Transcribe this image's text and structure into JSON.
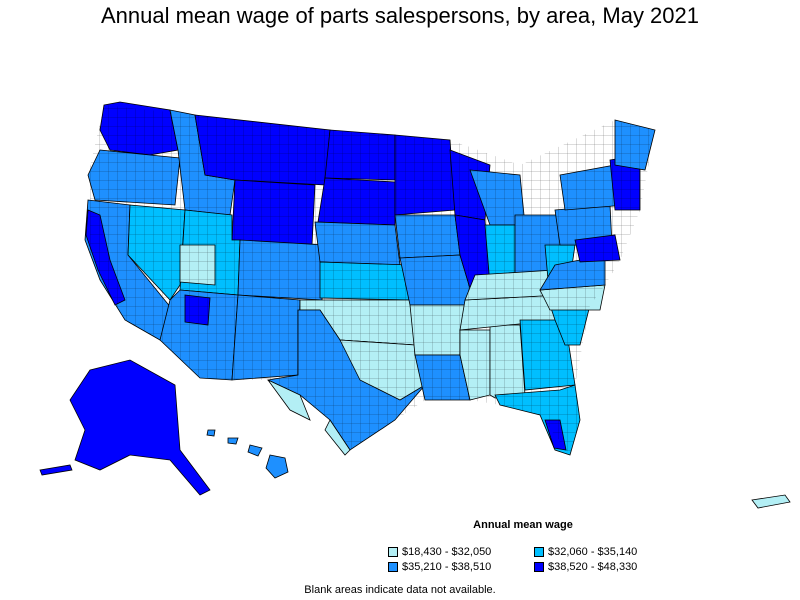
{
  "title": "Annual mean wage of parts salespersons, by area, May 2021",
  "legend": {
    "title": "Annual mean wage",
    "items": [
      {
        "label": "$18,430 - $32,050",
        "color": "#b3eff5"
      },
      {
        "label": "$32,060 - $35,140",
        "color": "#00bfff"
      },
      {
        "label": "$35,210 - $38,510",
        "color": "#1e90ff"
      },
      {
        "label": "$38,520 - $48,330",
        "color": "#0000ff"
      }
    ]
  },
  "footnote": "Blank areas indicate data not available.",
  "colors": {
    "tier1": "#b3eff5",
    "tier2": "#00bfff",
    "tier3": "#1e90ff",
    "tier4": "#0000ff",
    "border": "#000000"
  }
}
